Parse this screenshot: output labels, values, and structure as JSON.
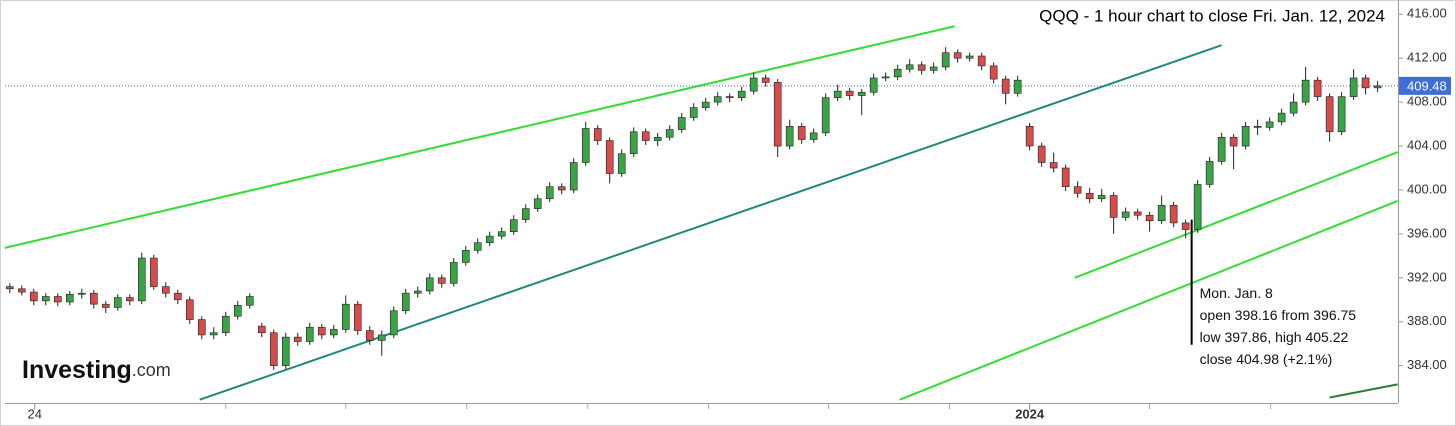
{
  "chart_data": {
    "type": "candlestick",
    "title": "QQQ - 1 hour chart to close Fri. Jan. 12, 2024",
    "logo": {
      "name": "Investing",
      "suffix": ".com"
    },
    "up_color": "#3aa346",
    "down_color": "#d64b4b",
    "xlim": [
      -0.4,
      115.7
    ],
    "ylim": [
      380.6,
      417.3
    ],
    "yticks": [
      {
        "value": 384,
        "label": "384.00"
      },
      {
        "value": 388,
        "label": "388.00"
      },
      {
        "value": 392,
        "label": "392.00"
      },
      {
        "value": 396,
        "label": "396.00"
      },
      {
        "value": 400,
        "label": "400.00"
      },
      {
        "value": 404,
        "label": "404.00"
      },
      {
        "value": 408,
        "label": "408.00"
      },
      {
        "value": 412,
        "label": "412.00"
      },
      {
        "value": 416,
        "label": "416.00"
      }
    ],
    "xticks": [
      {
        "value": 2.08,
        "label": "24"
      },
      {
        "value": 85,
        "label": "2024"
      }
    ],
    "xminor": [
      18,
      28,
      38.08,
      48.17,
      58.25,
      68.25,
      78.33,
      95,
      105.08
    ],
    "last_price": {
      "value": 409.48,
      "label": "409.48",
      "color": "#3f6fd6"
    },
    "trendlines": [
      {
        "color": "#33dd33",
        "x": [
          -0.42,
          78.75
        ],
        "y": [
          394.73,
          414.91
        ]
      },
      {
        "color": "#1f8a7a",
        "x": [
          15.83,
          101.0
        ],
        "y": [
          380.9,
          413.18
        ]
      },
      {
        "color": "#33dd33",
        "x": [
          88.75,
          115.67
        ],
        "y": [
          392.0,
          403.45
        ]
      },
      {
        "color": "#33dd33",
        "x": [
          74.17,
          115.67
        ],
        "y": [
          380.9,
          399.0
        ]
      },
      {
        "color": "#2e7d32",
        "x": [
          110.0,
          115.67
        ],
        "y": [
          381.1,
          382.3
        ]
      }
    ],
    "annotation": {
      "x": 98.5,
      "y": [
        397.3,
        385.9
      ],
      "lines": [
        "Mon. Jan. 8",
        "open 398.16 from 396.75",
        "low 397.86, high 405.22",
        "close 404.98 (+2.1%)"
      ]
    },
    "ohlc": [
      [
        391.2,
        391.5,
        390.6,
        391.0
      ],
      [
        391.0,
        391.3,
        390.4,
        390.7
      ],
      [
        390.7,
        391.0,
        389.5,
        389.9
      ],
      [
        389.9,
        390.6,
        389.5,
        390.3
      ],
      [
        390.3,
        390.6,
        389.4,
        389.8
      ],
      [
        389.8,
        390.8,
        389.5,
        390.5
      ],
      [
        390.5,
        391.0,
        390.1,
        390.6
      ],
      [
        390.6,
        390.9,
        389.2,
        389.6
      ],
      [
        389.6,
        389.9,
        388.8,
        389.3
      ],
      [
        389.3,
        390.5,
        389.0,
        390.2
      ],
      [
        390.2,
        390.5,
        389.5,
        389.9
      ],
      [
        389.9,
        394.3,
        389.6,
        393.8
      ],
      [
        393.8,
        394.1,
        390.9,
        391.2
      ],
      [
        391.2,
        391.6,
        390.2,
        390.6
      ],
      [
        390.6,
        390.9,
        389.6,
        390.0
      ],
      [
        390.0,
        390.3,
        387.8,
        388.2
      ],
      [
        388.2,
        388.5,
        386.4,
        386.8
      ],
      [
        386.8,
        387.5,
        386.4,
        387.0
      ],
      [
        387.0,
        388.9,
        386.7,
        388.5
      ],
      [
        388.5,
        389.9,
        388.2,
        389.5
      ],
      [
        389.5,
        390.6,
        389.2,
        390.3
      ],
      [
        387.6,
        387.9,
        386.6,
        387.0
      ],
      [
        387.0,
        387.3,
        383.6,
        384.0
      ],
      [
        384.0,
        387.0,
        383.7,
        386.6
      ],
      [
        386.6,
        387.0,
        385.8,
        386.2
      ],
      [
        386.2,
        387.9,
        385.9,
        387.5
      ],
      [
        387.5,
        387.8,
        386.4,
        386.8
      ],
      [
        386.8,
        387.7,
        386.5,
        387.3
      ],
      [
        387.3,
        390.4,
        387.0,
        389.6
      ],
      [
        389.6,
        389.9,
        386.8,
        387.2
      ],
      [
        387.2,
        387.6,
        385.9,
        386.3
      ],
      [
        386.3,
        387.2,
        384.9,
        386.8
      ],
      [
        386.8,
        389.4,
        386.5,
        389.0
      ],
      [
        389.0,
        391.0,
        388.7,
        390.6
      ],
      [
        390.6,
        391.2,
        390.2,
        390.8
      ],
      [
        390.8,
        392.4,
        390.5,
        392.0
      ],
      [
        392.0,
        392.3,
        391.1,
        391.5
      ],
      [
        391.5,
        393.8,
        391.2,
        393.4
      ],
      [
        393.4,
        394.9,
        393.1,
        394.5
      ],
      [
        394.5,
        395.6,
        394.2,
        395.2
      ],
      [
        395.2,
        396.2,
        394.9,
        395.8
      ],
      [
        395.8,
        396.6,
        395.5,
        396.2
      ],
      [
        396.2,
        397.7,
        395.9,
        397.3
      ],
      [
        397.3,
        398.7,
        397.0,
        398.3
      ],
      [
        398.3,
        399.6,
        398.0,
        399.2
      ],
      [
        399.2,
        400.7,
        398.9,
        400.3
      ],
      [
        400.3,
        400.6,
        399.6,
        400.0
      ],
      [
        400.0,
        402.9,
        399.7,
        402.5
      ],
      [
        402.5,
        406.2,
        402.2,
        405.6
      ],
      [
        405.6,
        405.9,
        404.1,
        404.5
      ],
      [
        404.5,
        404.8,
        400.6,
        401.5
      ],
      [
        401.5,
        403.7,
        401.2,
        403.3
      ],
      [
        403.3,
        405.7,
        403.0,
        405.3
      ],
      [
        405.3,
        405.6,
        404.1,
        404.5
      ],
      [
        404.5,
        405.2,
        404.0,
        404.8
      ],
      [
        404.8,
        405.9,
        404.5,
        405.5
      ],
      [
        405.5,
        407.0,
        405.2,
        406.6
      ],
      [
        406.6,
        407.9,
        406.3,
        407.5
      ],
      [
        407.5,
        408.4,
        407.2,
        408.0
      ],
      [
        408.0,
        408.9,
        407.7,
        408.5
      ],
      [
        408.5,
        408.8,
        408.0,
        408.4
      ],
      [
        408.4,
        409.4,
        408.1,
        409.0
      ],
      [
        409.0,
        410.7,
        408.7,
        410.2
      ],
      [
        410.2,
        410.5,
        409.4,
        409.8
      ],
      [
        409.8,
        410.1,
        403.0,
        404.0
      ],
      [
        404.0,
        406.4,
        403.7,
        405.8
      ],
      [
        405.8,
        406.1,
        404.2,
        404.6
      ],
      [
        404.6,
        405.6,
        404.3,
        405.2
      ],
      [
        405.2,
        408.8,
        404.9,
        408.4
      ],
      [
        408.4,
        409.6,
        408.1,
        409.0
      ],
      [
        409.0,
        409.3,
        408.2,
        408.6
      ],
      [
        408.6,
        409.2,
        406.8,
        408.9
      ],
      [
        408.9,
        410.6,
        408.6,
        410.2
      ],
      [
        410.2,
        410.7,
        409.9,
        410.3
      ],
      [
        410.3,
        411.4,
        410.0,
        411.0
      ],
      [
        411.0,
        411.9,
        410.7,
        411.4
      ],
      [
        411.4,
        411.7,
        410.5,
        410.9
      ],
      [
        410.9,
        411.6,
        410.6,
        411.2
      ],
      [
        411.2,
        413.0,
        410.9,
        412.5
      ],
      [
        412.5,
        412.8,
        411.6,
        412.0
      ],
      [
        412.0,
        412.5,
        411.7,
        412.2
      ],
      [
        412.2,
        412.5,
        410.9,
        411.3
      ],
      [
        411.3,
        411.6,
        409.7,
        410.1
      ],
      [
        410.1,
        410.4,
        407.8,
        408.8
      ],
      [
        408.8,
        410.4,
        408.5,
        410.0
      ],
      [
        405.8,
        406.1,
        403.6,
        404.0
      ],
      [
        404.0,
        404.3,
        402.1,
        402.5
      ],
      [
        402.5,
        403.4,
        401.6,
        402.0
      ],
      [
        402.0,
        402.3,
        399.9,
        400.3
      ],
      [
        400.3,
        400.8,
        399.3,
        399.7
      ],
      [
        399.7,
        400.2,
        398.8,
        399.2
      ],
      [
        399.2,
        400.1,
        398.9,
        399.5
      ],
      [
        399.5,
        399.8,
        396.0,
        397.5
      ],
      [
        397.5,
        398.4,
        397.2,
        398.0
      ],
      [
        398.0,
        398.3,
        397.3,
        397.7
      ],
      [
        397.7,
        398.0,
        396.2,
        397.2
      ],
      [
        397.2,
        399.5,
        396.9,
        398.6
      ],
      [
        398.6,
        398.9,
        396.6,
        397.0
      ],
      [
        397.0,
        397.3,
        395.6,
        396.4
      ],
      [
        396.4,
        400.9,
        396.1,
        400.5
      ],
      [
        400.5,
        403.0,
        400.2,
        402.6
      ],
      [
        402.6,
        405.2,
        402.3,
        404.8
      ],
      [
        404.8,
        405.1,
        401.9,
        404.0
      ],
      [
        404.0,
        406.2,
        403.7,
        405.8
      ],
      [
        405.8,
        406.4,
        405.0,
        405.7
      ],
      [
        405.7,
        406.6,
        405.4,
        406.2
      ],
      [
        406.2,
        407.4,
        405.9,
        407.0
      ],
      [
        407.0,
        408.8,
        406.7,
        408.0
      ],
      [
        408.0,
        411.2,
        407.7,
        410.0
      ],
      [
        410.0,
        410.3,
        408.1,
        408.5
      ],
      [
        408.5,
        408.8,
        404.4,
        405.3
      ],
      [
        405.3,
        408.9,
        405.0,
        408.5
      ],
      [
        408.5,
        411.0,
        408.2,
        410.2
      ],
      [
        410.2,
        410.5,
        408.7,
        409.3
      ],
      [
        409.3,
        409.9,
        408.9,
        409.48
      ]
    ]
  }
}
